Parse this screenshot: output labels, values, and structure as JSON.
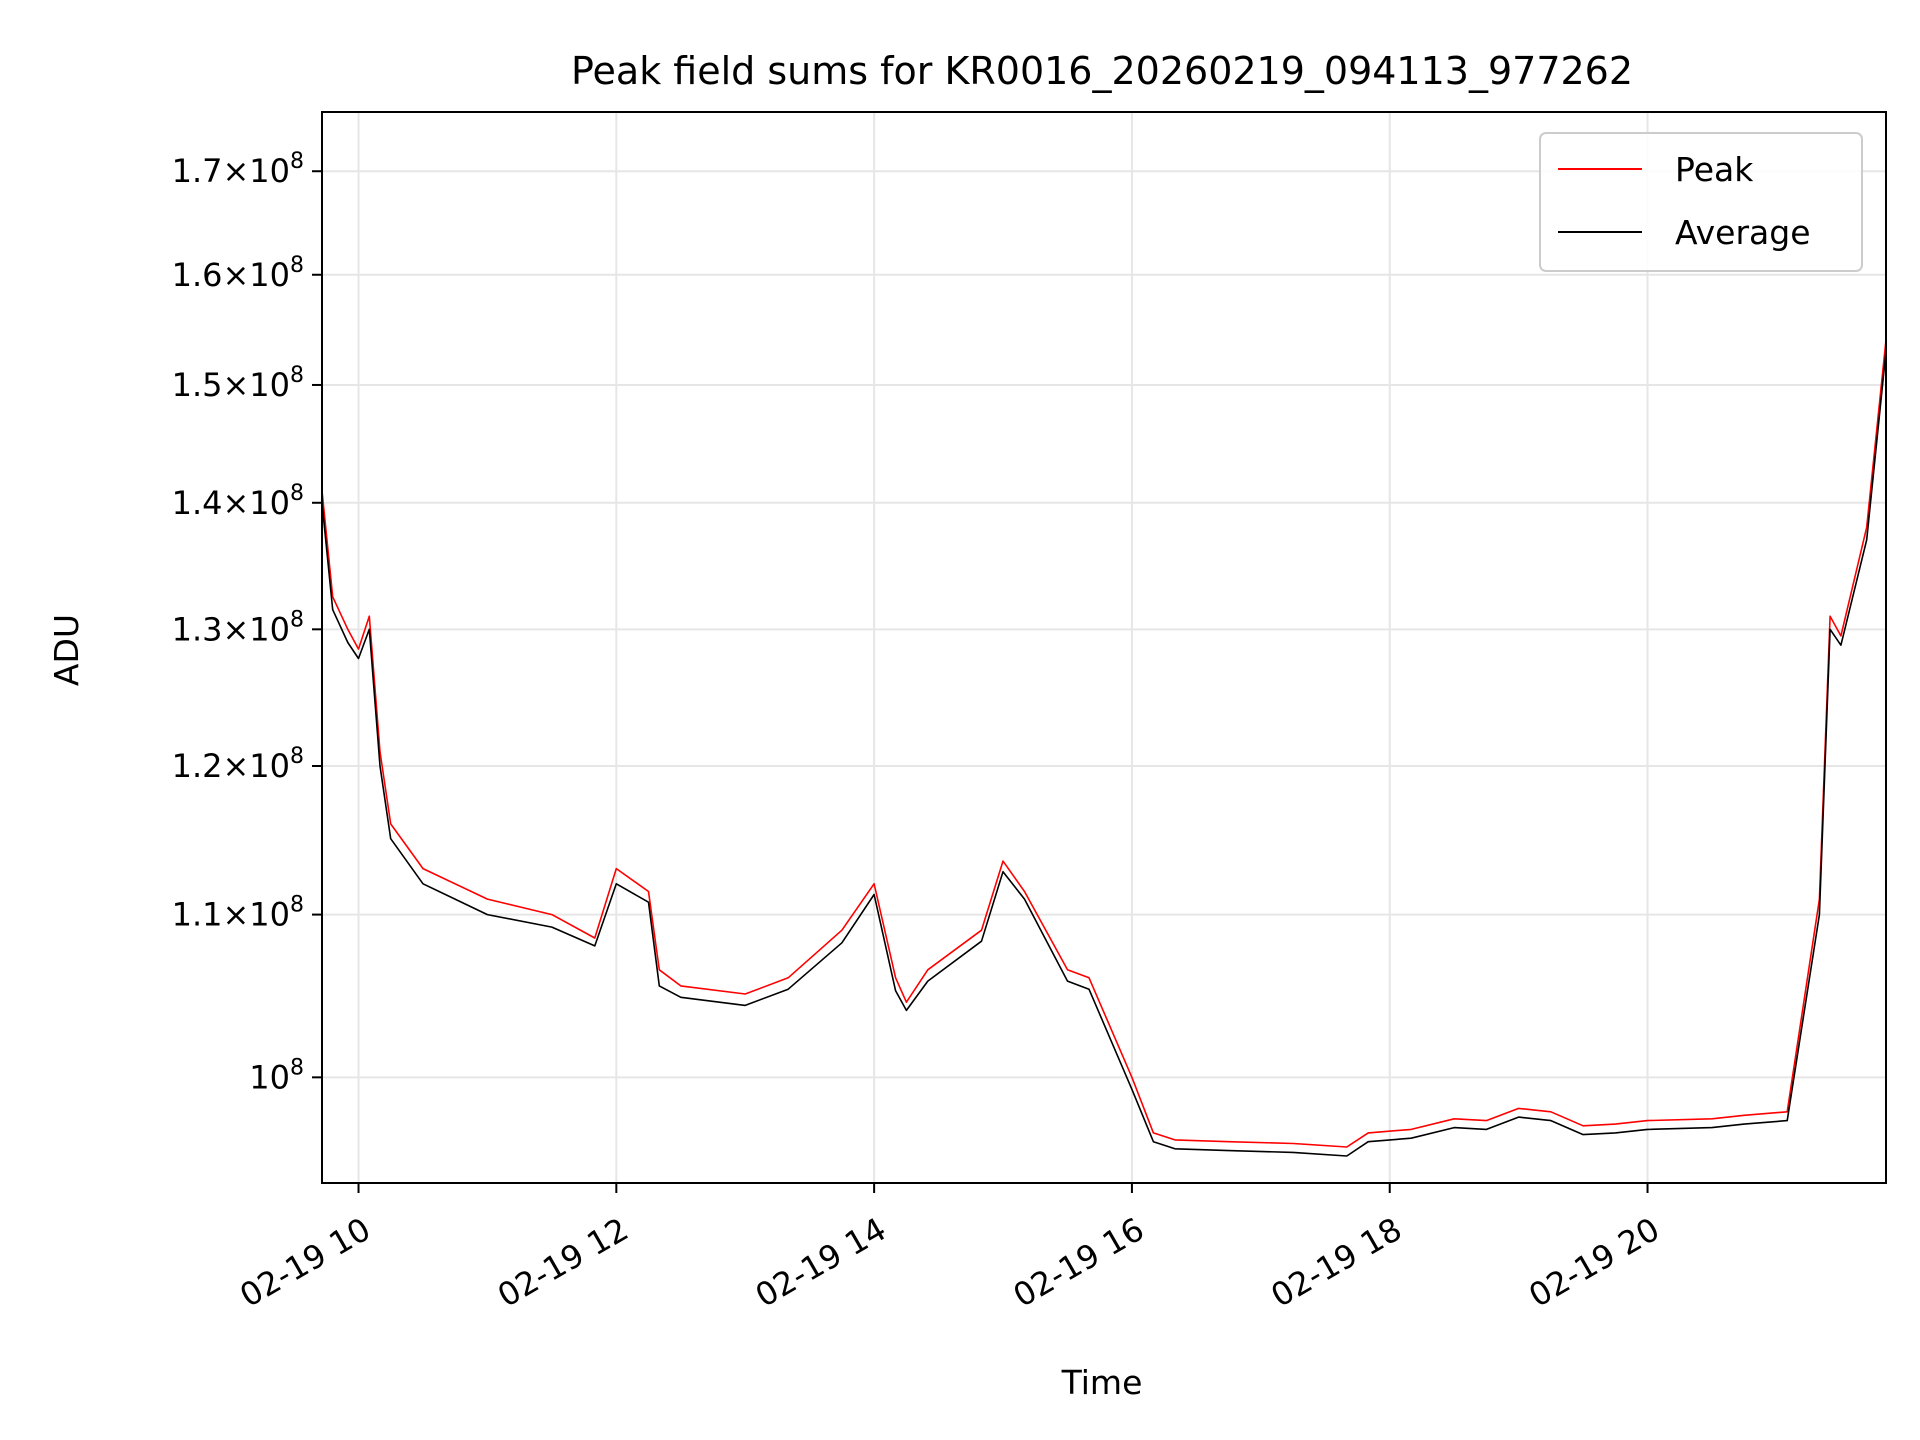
{
  "chart_data": {
    "type": "line",
    "title": "Peak field sums for KR0016_20260219_094113_977262",
    "xlabel": "Time",
    "ylabel": "ADU",
    "yscale": "log",
    "grid": true,
    "legend_position": "top-right",
    "xlim": [
      "02-19 09:43",
      "02-19 21:51"
    ],
    "ylim": [
      94000000,
      176000000
    ],
    "x_ticks": [
      "02-19 10",
      "02-19 12",
      "02-19 14",
      "02-19 16",
      "02-19 18",
      "02-19 20"
    ],
    "x_tick_hours": [
      10,
      12,
      14,
      16,
      18,
      20
    ],
    "y_ticks": [
      {
        "value": 100000000,
        "mantissa": "",
        "exp": "8"
      },
      {
        "value": 110000000,
        "mantissa": "1.1",
        "exp": "8"
      },
      {
        "value": 120000000,
        "mantissa": "1.2",
        "exp": "8"
      },
      {
        "value": 130000000,
        "mantissa": "1.3",
        "exp": "8"
      },
      {
        "value": 140000000,
        "mantissa": "1.4",
        "exp": "8"
      },
      {
        "value": 150000000,
        "mantissa": "1.5",
        "exp": "8"
      },
      {
        "value": 160000000,
        "mantissa": "1.6",
        "exp": "8"
      },
      {
        "value": 170000000,
        "mantissa": "1.7",
        "exp": "8"
      }
    ],
    "series": [
      {
        "name": "Peak",
        "color": "#ff0000",
        "x": [
          "09:43",
          "09:48",
          "09:55",
          "10:00",
          "10:05",
          "10:10",
          "10:15",
          "10:30",
          "11:00",
          "11:30",
          "11:50",
          "12:00",
          "12:15",
          "12:20",
          "12:30",
          "13:00",
          "13:20",
          "13:45",
          "14:00",
          "14:10",
          "14:15",
          "14:25",
          "14:50",
          "15:00",
          "15:10",
          "15:30",
          "15:40",
          "16:00",
          "16:10",
          "16:20",
          "16:45",
          "17:15",
          "17:40",
          "17:50",
          "18:10",
          "18:30",
          "18:45",
          "19:00",
          "19:15",
          "19:30",
          "19:45",
          "20:00",
          "20:30",
          "20:45",
          "21:05",
          "21:20",
          "21:25",
          "21:30",
          "21:42",
          "21:51"
        ],
        "values": [
          141000000,
          132500000,
          130000000,
          128500000,
          131000000,
          121000000,
          116000000,
          113000000,
          111000000,
          110000000,
          108500000,
          113000000,
          111500000,
          106500000,
          105500000,
          105000000,
          106000000,
          109000000,
          112000000,
          106000000,
          104500000,
          106500000,
          109000000,
          113500000,
          111500000,
          106500000,
          106000000,
          100000000,
          96800000,
          96400000,
          96300000,
          96200000,
          96000000,
          96800000,
          97000000,
          97600000,
          97500000,
          98200000,
          98000000,
          97200000,
          97300000,
          97500000,
          97600000,
          97800000,
          98000000,
          111000000,
          131000000,
          129500000,
          138000000,
          154000000
        ]
      },
      {
        "name": "Average",
        "color": "#000000",
        "x": [
          "09:43",
          "09:48",
          "09:55",
          "10:00",
          "10:05",
          "10:10",
          "10:15",
          "10:30",
          "11:00",
          "11:30",
          "11:50",
          "12:00",
          "12:15",
          "12:20",
          "12:30",
          "13:00",
          "13:20",
          "13:45",
          "14:00",
          "14:10",
          "14:15",
          "14:25",
          "14:50",
          "15:00",
          "15:10",
          "15:30",
          "15:40",
          "16:00",
          "16:10",
          "16:20",
          "16:45",
          "17:15",
          "17:40",
          "17:50",
          "18:10",
          "18:30",
          "18:45",
          "19:00",
          "19:15",
          "19:30",
          "19:45",
          "20:00",
          "20:30",
          "20:45",
          "21:05",
          "21:20",
          "21:25",
          "21:30",
          "21:42",
          "21:51"
        ],
        "values": [
          140000000,
          131500000,
          129000000,
          127800000,
          130000000,
          120000000,
          115000000,
          112000000,
          110000000,
          109200000,
          108000000,
          112000000,
          110800000,
          105500000,
          104800000,
          104300000,
          105300000,
          108200000,
          111300000,
          105200000,
          104000000,
          105800000,
          108300000,
          112800000,
          111000000,
          105800000,
          105300000,
          99300000,
          96300000,
          95900000,
          95800000,
          95700000,
          95500000,
          96300000,
          96500000,
          97100000,
          97000000,
          97700000,
          97500000,
          96700000,
          96800000,
          97000000,
          97100000,
          97300000,
          97500000,
          110000000,
          130000000,
          128800000,
          137000000,
          153000000
        ]
      }
    ]
  }
}
